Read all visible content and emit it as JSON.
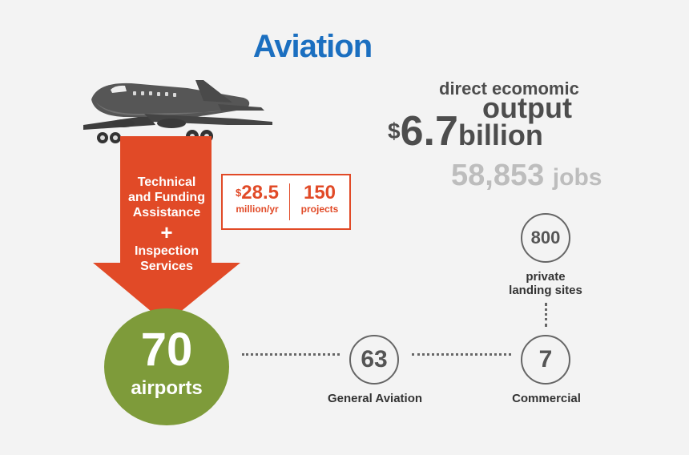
{
  "title": "Aviation",
  "arrow": {
    "line1": "Technical",
    "line2": "and Funding",
    "line3": "Assistance",
    "plus": "+",
    "line4": "Inspection",
    "line5": "Services",
    "arrow_color": "#e14a27"
  },
  "funding": {
    "currency": "$",
    "amount": "28.5",
    "unit": "million/yr",
    "projects_count": "150",
    "projects_label": "projects"
  },
  "economic": {
    "line1": "direct ecomomic",
    "line2": "output",
    "currency": "$",
    "amount": "6.7",
    "unit": "billion",
    "jobs_count": "58,853",
    "jobs_label": "jobs"
  },
  "airports": {
    "total": "70",
    "total_label": "airports",
    "circle_color": "#7e9b3a",
    "general_count": "63",
    "general_label": "General Aviation",
    "commercial_count": "7",
    "commercial_label": "Commercial",
    "private_count": "800",
    "private_label_1": "private",
    "private_label_2": "landing sites"
  },
  "colors": {
    "title": "#1b6fc0",
    "accent": "#e14a27",
    "text_dark": "#4d4d4d",
    "text_muted": "#bdbdbd"
  },
  "icons": [
    "airplane-icon",
    "down-arrow-shape"
  ]
}
